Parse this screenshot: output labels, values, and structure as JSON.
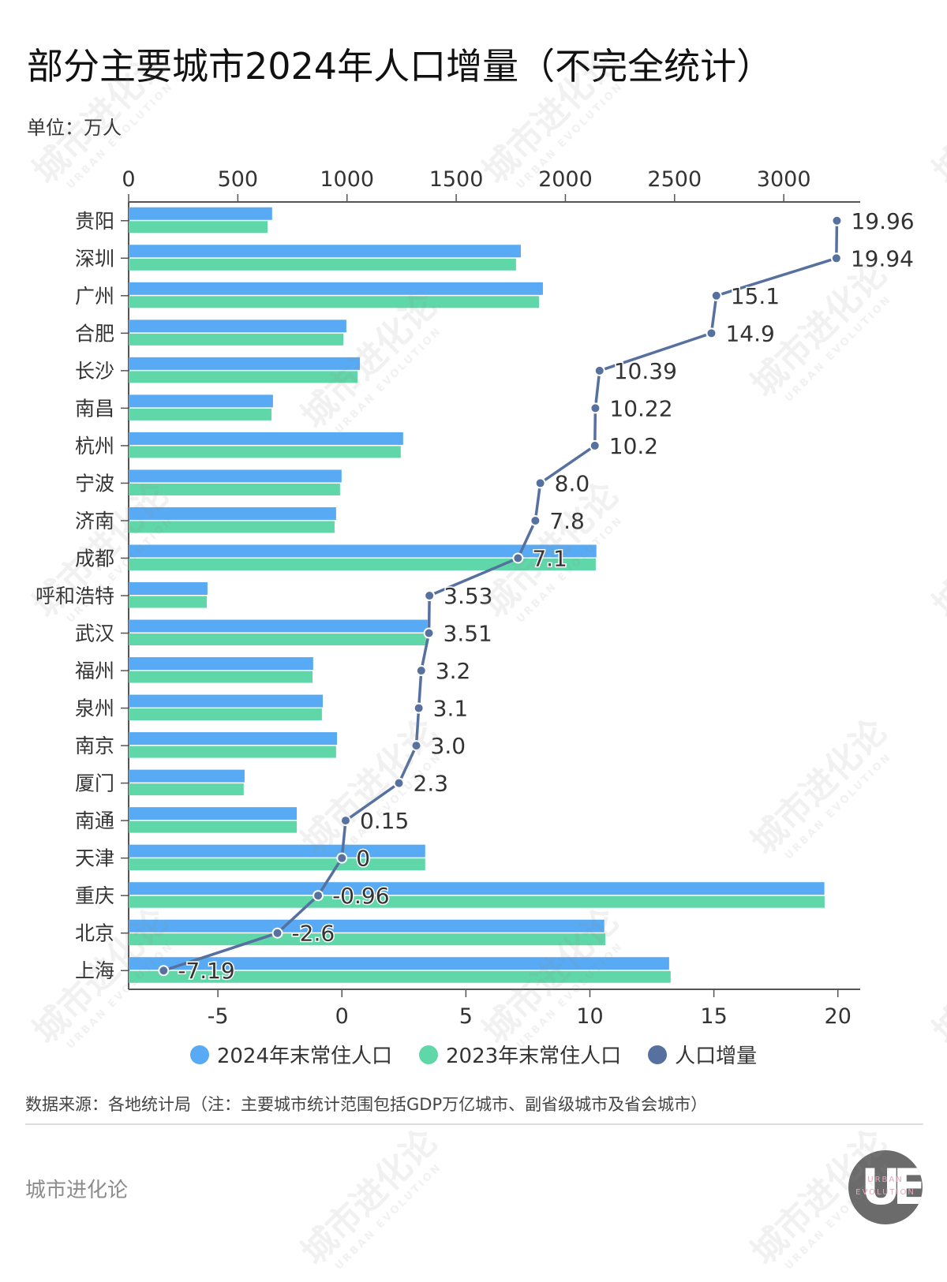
{
  "header": {
    "title": "部分主要城市2024年人口增量（不完全统计）",
    "unit": "单位：万人"
  },
  "legend": [
    {
      "label": "2024年末常住人口",
      "color": "#57aaf3"
    },
    {
      "label": "2023年末常住人口",
      "color": "#5fd7a8"
    },
    {
      "label": "人口增量",
      "color": "#5670a0"
    }
  ],
  "footer": {
    "source": "数据来源：各地统计局（注：主要城市统计范围包括GDP万亿城市、副省级城市及省会城市）",
    "brand": "城市进化论",
    "logo_text_top": "URBAN",
    "logo_text_bottom": "EVOLUTION",
    "logo_letters": "UE"
  },
  "watermark": {
    "cn": "城市进化论",
    "en": "URBAN EVOLUTION"
  },
  "chart_data": {
    "type": "bar",
    "title": "部分主要城市2024年人口增量（不完全统计）",
    "subtitle": "单位：万人",
    "orientation": "horizontal",
    "categories": [
      "贵阳",
      "深圳",
      "广州",
      "合肥",
      "长沙",
      "南昌",
      "杭州",
      "宁波",
      "济南",
      "成都",
      "呼和浩特",
      "武汉",
      "福州",
      "泉州",
      "南京",
      "厦门",
      "南通",
      "天津",
      "重庆",
      "北京",
      "上海"
    ],
    "series": [
      {
        "name": "2024年末常住人口",
        "type": "bar",
        "axis": "top",
        "color": "#57aaf3",
        "values": [
          657,
          1796,
          1897,
          997,
          1059,
          661,
          1257,
          975,
          950,
          2142,
          361,
          1369,
          845,
          889,
          954,
          531,
          770,
          1358,
          3186,
          2178,
          2475
        ]
      },
      {
        "name": "2023年末常住人口",
        "type": "bar",
        "axis": "top",
        "color": "#5fd7a8",
        "values": [
          636,
          1774,
          1879,
          983,
          1048,
          654,
          1246,
          968,
          943,
          2139,
          358,
          1362,
          842,
          885,
          950,
          527,
          770,
          1358,
          3187,
          2183,
          2482
        ]
      },
      {
        "name": "人口增量",
        "type": "line",
        "axis": "bottom",
        "color": "#5670a0",
        "values": [
          19.96,
          19.94,
          15.1,
          14.9,
          10.39,
          10.22,
          10.2,
          8.0,
          7.8,
          7.1,
          3.53,
          3.51,
          3.2,
          3.1,
          3.0,
          2.3,
          0.15,
          0,
          -0.96,
          -2.6,
          -7.19
        ],
        "labels": [
          "19.96",
          "19.94",
          "15.1",
          "14.9",
          "10.39",
          "10.22",
          "10.2",
          "8.0",
          "7.8",
          "7.1",
          "3.53",
          "3.51",
          "3.2",
          "3.1",
          "3.0",
          "2.3",
          "0.15",
          "0",
          "-0.96",
          "-2.6",
          "-7.19"
        ]
      }
    ],
    "top_axis": {
      "ticks": [
        0,
        500,
        1000,
        1500,
        2000,
        2500,
        3000
      ],
      "range": [
        0,
        3350
      ]
    },
    "bottom_axis": {
      "ticks": [
        -5,
        0,
        5,
        10,
        15,
        20
      ],
      "range": [
        -8.6,
        20.9
      ]
    },
    "grid": false,
    "legend_position": "bottom"
  }
}
